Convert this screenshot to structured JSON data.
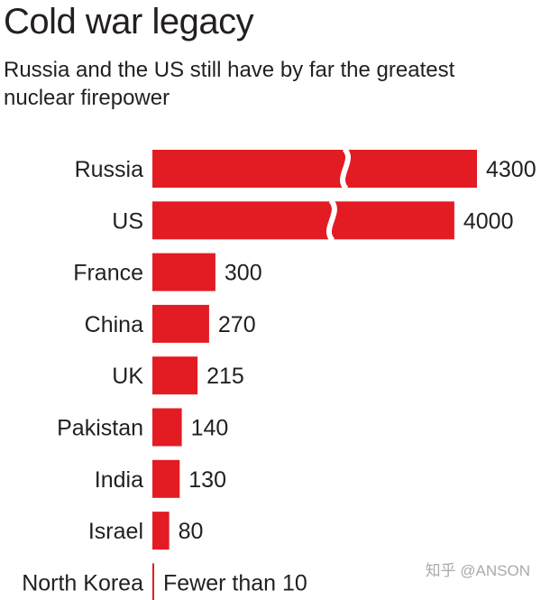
{
  "header": {
    "title": "Cold war legacy",
    "subtitle": "Russia and the US still have by far the greatest nuclear firepower"
  },
  "watermark": "知乎 @ANSON",
  "colors": {
    "bar": "#e31b23",
    "text": "#231f20"
  },
  "chart_data": {
    "type": "bar",
    "orientation": "horizontal",
    "axis_break": true,
    "categories": [
      "Russia",
      "US",
      "France",
      "China",
      "UK",
      "Pakistan",
      "India",
      "Israel",
      "North Korea"
    ],
    "values": [
      4300,
      4000,
      300,
      270,
      215,
      140,
      130,
      80,
      10
    ],
    "value_labels": [
      "4300",
      "4000",
      "300",
      "270",
      "215",
      "140",
      "130",
      "80",
      "Fewer than 10"
    ],
    "title": "Cold war legacy",
    "subtitle": "Russia and the US still have by far the greatest nuclear firepower",
    "grid": false
  }
}
